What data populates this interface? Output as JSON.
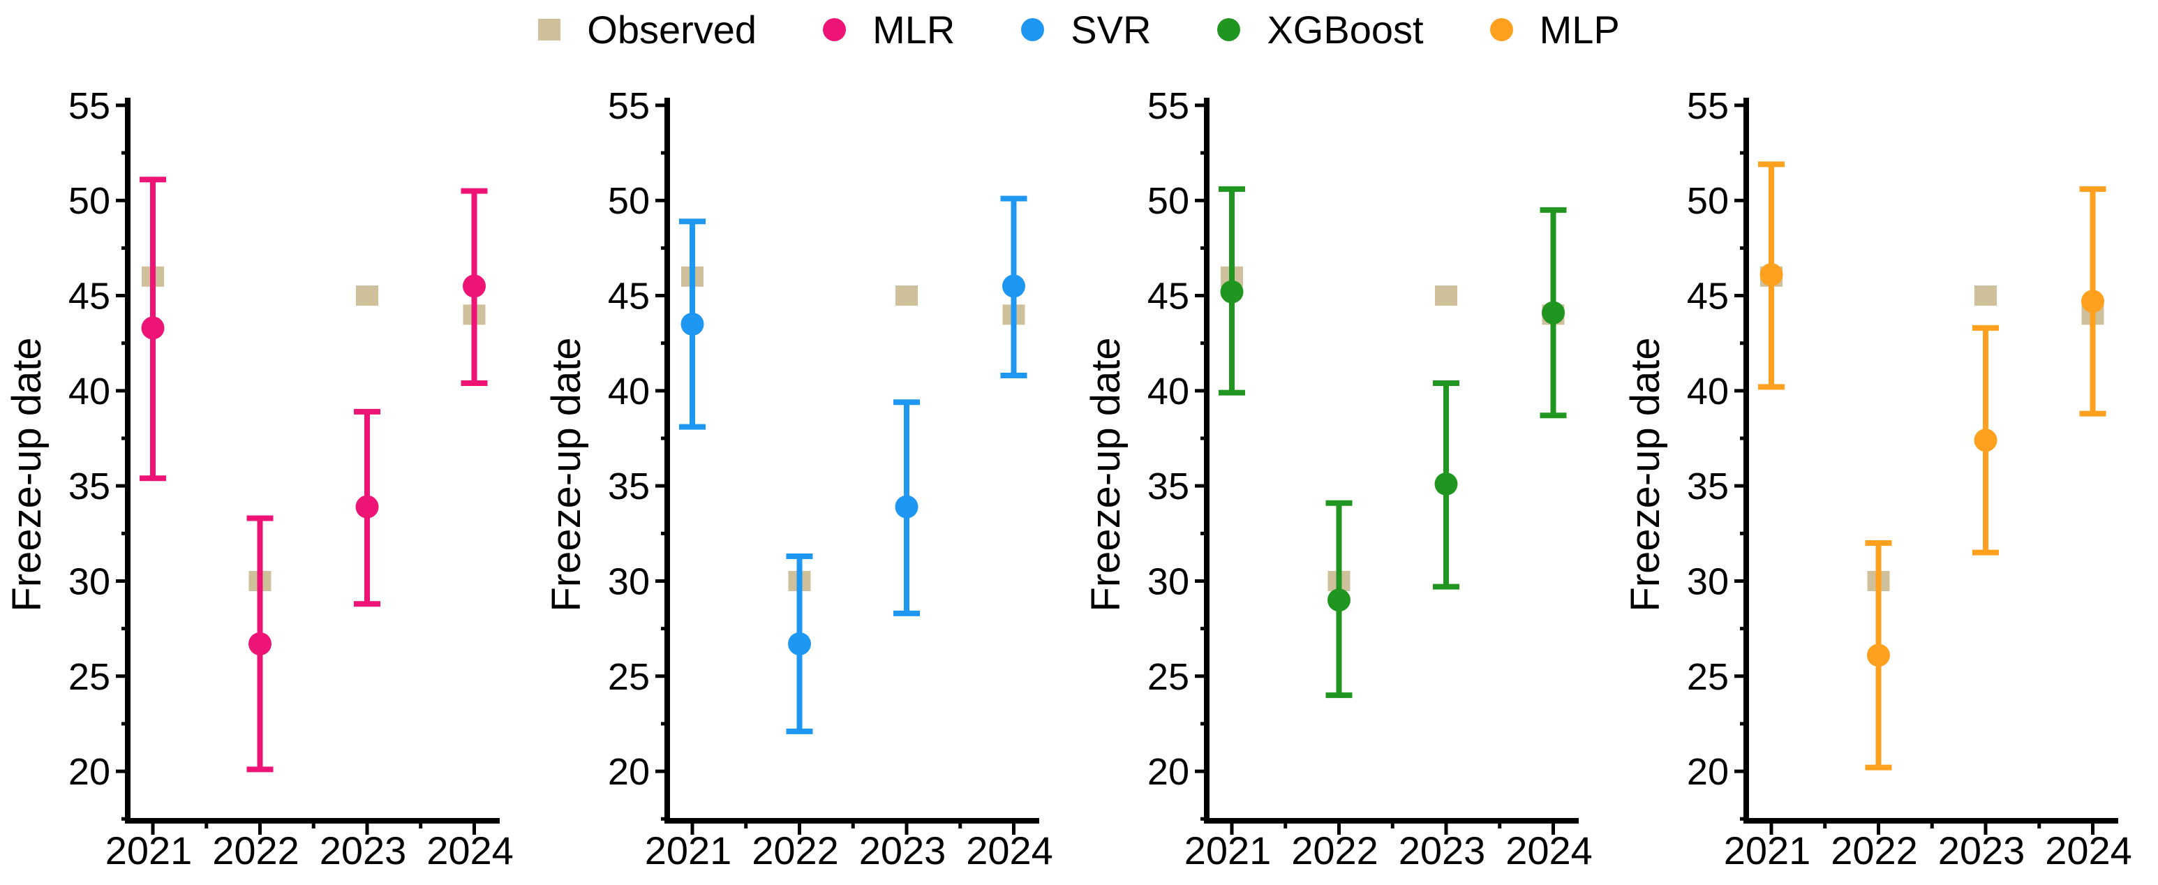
{
  "legend": {
    "items": [
      {
        "label": "Observed",
        "marker": "square",
        "color": "#CEC09B"
      },
      {
        "label": "MLR",
        "marker": "circle",
        "color": "#ED1476"
      },
      {
        "label": "SVR",
        "marker": "circle",
        "color": "#1E97F2"
      },
      {
        "label": "XGBoost",
        "marker": "circle",
        "color": "#209620"
      },
      {
        "label": "MLP",
        "marker": "circle",
        "color": "#FFA01E"
      }
    ]
  },
  "chart_data": {
    "type": "scatter",
    "categories": [
      "2021",
      "2022",
      "2023",
      "2024"
    ],
    "ylabel": "Freeze-up date",
    "y_ticks": [
      20,
      25,
      30,
      35,
      40,
      45,
      50,
      55
    ],
    "ylim": [
      17.4,
      55.4
    ],
    "grid": false,
    "legend_position": "top",
    "observed": {
      "name": "Observed",
      "color": "#CEC09B",
      "values": [
        46,
        30,
        45,
        44
      ]
    },
    "panels": [
      {
        "name": "MLR",
        "color": "#ED1476",
        "mean": [
          43.3,
          26.7,
          33.9,
          45.5
        ],
        "lower": [
          35.4,
          20.1,
          28.8,
          40.4
        ],
        "upper": [
          51.1,
          33.3,
          38.9,
          50.5
        ]
      },
      {
        "name": "SVR",
        "color": "#1E97F2",
        "mean": [
          43.5,
          26.7,
          33.9,
          45.5
        ],
        "lower": [
          38.1,
          22.1,
          28.3,
          40.8
        ],
        "upper": [
          48.9,
          31.3,
          39.4,
          50.1
        ]
      },
      {
        "name": "XGBoost",
        "color": "#209620",
        "mean": [
          45.2,
          29.0,
          35.1,
          44.1
        ],
        "lower": [
          39.9,
          24.0,
          29.7,
          38.7
        ],
        "upper": [
          50.6,
          34.1,
          40.4,
          49.5
        ]
      },
      {
        "name": "MLP",
        "color": "#FFA01E",
        "mean": [
          46.1,
          26.1,
          37.4,
          44.7
        ],
        "lower": [
          40.2,
          20.2,
          31.5,
          38.8
        ],
        "upper": [
          51.9,
          32.0,
          43.3,
          50.6
        ]
      }
    ]
  }
}
